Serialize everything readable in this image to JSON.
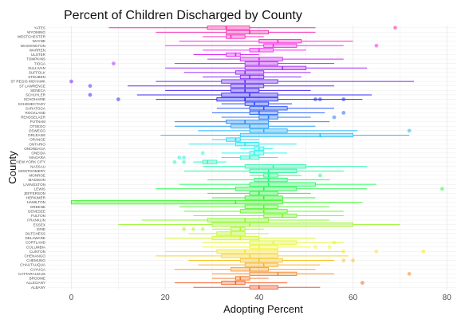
{
  "chart_data": {
    "type": "boxplot",
    "orientation": "horizontal",
    "title": "Percent of Children Discharged by County",
    "xlabel": "Adopting Percent",
    "ylabel": "County",
    "xlim": [
      -5,
      82
    ],
    "x_ticks": [
      0,
      20,
      40,
      60,
      80
    ],
    "grid": true,
    "legend": "none",
    "categories": [
      "YATES",
      "WYOMING",
      "WESTCHESTER",
      "WAYNE",
      "WASHINGTON",
      "WARREN",
      "ULSTER",
      "TOMPKINS",
      "TIOGA",
      "SULLIVAN",
      "SUFFOLK",
      "STEUBEN",
      "ST REGIS MOHAWK",
      "ST LAWRENCE",
      "SENECA",
      "SCHUYLER",
      "SCHOHARIE",
      "SCHENECTADY",
      "SARATOGA",
      "ROCKLAND",
      "RENSSELAER",
      "PUTNAM",
      "OTSEGO",
      "OSWEGO",
      "ORLEANS",
      "ORANGE",
      "ONTARIO",
      "ONONDAGA",
      "ONEIDA",
      "NIAGARA",
      "NEW YORK CITY",
      "NASSAU",
      "MONTGOMERY",
      "MONROE",
      "MADISON",
      "LIVINGSTON",
      "LEWIS",
      "JEFFERSON",
      "HERKIMER",
      "HAMILTON",
      "GREENE",
      "GENESEE",
      "FULTON",
      "FRANKLIN",
      "ESSEX",
      "ERIE",
      "DUTCHESS",
      "DELAWARE",
      "CORTLAND",
      "COLUMBIA",
      "CLINTON",
      "CHENANGO",
      "CHEMUNG",
      "CHAUTAUQUA",
      "CAYUGA",
      "CATTARAUGUS",
      "BROOME",
      "ALLEGANY",
      "ALBANY"
    ],
    "series": [
      {
        "category": "YATES",
        "min": 8,
        "q1": 29,
        "median": 33,
        "q3": 38,
        "max": 52,
        "outliers": [
          69
        ]
      },
      {
        "category": "WYOMING",
        "min": 18,
        "q1": 33,
        "median": 38,
        "q3": 42,
        "max": 52,
        "outliers": []
      },
      {
        "category": "WESTCHESTER",
        "min": 28,
        "q1": 33,
        "median": 34,
        "q3": 37,
        "max": 41,
        "outliers": []
      },
      {
        "category": "WAYNE",
        "min": 23,
        "q1": 40,
        "median": 44,
        "q3": 49,
        "max": 60,
        "outliers": []
      },
      {
        "category": "WASHINGTON",
        "min": 20,
        "q1": 41,
        "median": 43,
        "q3": 48,
        "max": 58,
        "outliers": [
          65
        ]
      },
      {
        "category": "WARREN",
        "min": 28,
        "q1": 38,
        "median": 40,
        "q3": 43,
        "max": 50,
        "outliers": []
      },
      {
        "category": "ULSTER",
        "min": 26,
        "q1": 33,
        "median": 35,
        "q3": 36,
        "max": 40,
        "outliers": []
      },
      {
        "category": "TOMPKINS",
        "min": 29,
        "q1": 36,
        "median": 40,
        "q3": 45,
        "max": 58,
        "outliers": []
      },
      {
        "category": "TIOGA",
        "min": 22,
        "q1": 37,
        "median": 40,
        "q3": 44,
        "max": 56,
        "outliers": [
          9
        ]
      },
      {
        "category": "SULLIVAN",
        "min": 20,
        "q1": 37,
        "median": 45,
        "q3": 50,
        "max": 63,
        "outliers": []
      },
      {
        "category": "SUFFOLK",
        "min": 24,
        "q1": 35,
        "median": 37,
        "q3": 41,
        "max": 51,
        "outliers": []
      },
      {
        "category": "STEUBEN",
        "min": 28,
        "q1": 36,
        "median": 38,
        "q3": 41,
        "max": 49,
        "outliers": []
      },
      {
        "category": "ST REGIS MOHAWK",
        "min": 18,
        "q1": 32,
        "median": 37,
        "q3": 44,
        "max": 73,
        "outliers": [
          0
        ]
      },
      {
        "category": "ST LAWRENCE",
        "min": 12,
        "q1": 34,
        "median": 37,
        "q3": 41,
        "max": 56,
        "outliers": [
          4
        ]
      },
      {
        "category": "SENECA",
        "min": 20,
        "q1": 34,
        "median": 37,
        "q3": 40,
        "max": 51,
        "outliers": []
      },
      {
        "category": "SCHUYLER",
        "min": 14,
        "q1": 32,
        "median": 38,
        "q3": 44,
        "max": 64,
        "outliers": [
          4
        ]
      },
      {
        "category": "SCHOHARIE",
        "min": 18,
        "q1": 31,
        "median": 37,
        "q3": 44,
        "max": 62,
        "outliers": [
          10,
          52,
          53,
          58
        ]
      },
      {
        "category": "SCHENECTADY",
        "min": 32,
        "q1": 37,
        "median": 39,
        "q3": 42,
        "max": 47,
        "outliers": []
      },
      {
        "category": "SARATOGA",
        "min": 31,
        "q1": 38,
        "median": 41,
        "q3": 46,
        "max": 56,
        "outliers": []
      },
      {
        "category": "ROCKLAND",
        "min": 30,
        "q1": 38,
        "median": 40,
        "q3": 44,
        "max": 54,
        "outliers": [
          58
        ]
      },
      {
        "category": "RENSSELAER",
        "min": 32,
        "q1": 40,
        "median": 42,
        "q3": 44,
        "max": 51,
        "outliers": [
          56
        ]
      },
      {
        "category": "PUTNAM",
        "min": 22,
        "q1": 33,
        "median": 37,
        "q3": 42,
        "max": 55,
        "outliers": []
      },
      {
        "category": "OTSEGO",
        "min": 22,
        "q1": 34,
        "median": 38,
        "q3": 42,
        "max": 52,
        "outliers": []
      },
      {
        "category": "OSWEGO",
        "min": 27,
        "q1": 38,
        "median": 41,
        "q3": 46,
        "max": 61,
        "outliers": [
          72
        ]
      },
      {
        "category": "ORLEANS",
        "min": 19,
        "q1": 36,
        "median": 53,
        "q3": 60,
        "max": 72,
        "outliers": []
      },
      {
        "category": "ORANGE",
        "min": 30,
        "q1": 33,
        "median": 35,
        "q3": 36,
        "max": 40,
        "outliers": []
      },
      {
        "category": "ONTARIO",
        "min": 25,
        "q1": 35,
        "median": 37,
        "q3": 40,
        "max": 48,
        "outliers": []
      },
      {
        "category": "ONONDAGA",
        "min": 36,
        "q1": 39,
        "median": 40,
        "q3": 41,
        "max": 43,
        "outliers": []
      },
      {
        "category": "ONEIDA",
        "min": 32,
        "q1": 38,
        "median": 39,
        "q3": 41,
        "max": 46,
        "outliers": [
          28
        ]
      },
      {
        "category": "NIAGARA",
        "min": 32,
        "q1": 36,
        "median": 38,
        "q3": 40,
        "max": 44,
        "outliers": [
          23,
          24
        ]
      },
      {
        "category": "NEW YORK CITY",
        "min": 26,
        "q1": 28,
        "median": 29,
        "q3": 31,
        "max": 33,
        "outliers": [
          22,
          24
        ]
      },
      {
        "category": "NASSAU",
        "min": 28,
        "q1": 37,
        "median": 43,
        "q3": 50,
        "max": 63,
        "outliers": []
      },
      {
        "category": "MONTGOMERY",
        "min": 24,
        "q1": 38,
        "median": 42,
        "q3": 48,
        "max": 58,
        "outliers": []
      },
      {
        "category": "MONROE",
        "min": 38,
        "q1": 41,
        "median": 42,
        "q3": 44,
        "max": 49,
        "outliers": [
          53
        ]
      },
      {
        "category": "MADISON",
        "min": 29,
        "q1": 39,
        "median": 42,
        "q3": 46,
        "max": 55,
        "outliers": []
      },
      {
        "category": "LIVINGSTON",
        "min": 23,
        "q1": 38,
        "median": 42,
        "q3": 52,
        "max": 65,
        "outliers": []
      },
      {
        "category": "LEWIS",
        "min": 18,
        "q1": 35,
        "median": 41,
        "q3": 48,
        "max": 63,
        "outliers": [
          79
        ]
      },
      {
        "category": "JEFFERSON",
        "min": 29,
        "q1": 38,
        "median": 40,
        "q3": 44,
        "max": 51,
        "outliers": []
      },
      {
        "category": "HERKIMER",
        "min": 30,
        "q1": 37,
        "median": 41,
        "q3": 45,
        "max": 52,
        "outliers": []
      },
      {
        "category": "HAMILTON",
        "min": 0,
        "q1": 0,
        "median": 35,
        "q3": 45,
        "max": 62,
        "outliers": []
      },
      {
        "category": "GREENE",
        "min": 23,
        "q1": 37,
        "median": 41,
        "q3": 44,
        "max": 55,
        "outliers": []
      },
      {
        "category": "GENESEE",
        "min": 24,
        "q1": 36,
        "median": 41,
        "q3": 46,
        "max": 58,
        "outliers": []
      },
      {
        "category": "FULTON",
        "min": 26,
        "q1": 41,
        "median": 45,
        "q3": 48,
        "max": 58,
        "outliers": []
      },
      {
        "category": "FRANKLIN",
        "min": 15,
        "q1": 29,
        "median": 37,
        "q3": 42,
        "max": 55,
        "outliers": []
      },
      {
        "category": "ESSEX",
        "min": 10,
        "q1": 30,
        "median": 38,
        "q3": 60,
        "max": 70,
        "outliers": []
      },
      {
        "category": "ERIE",
        "min": 30,
        "q1": 34,
        "median": 36,
        "q3": 37,
        "max": 41,
        "outliers": [
          24,
          26,
          28
        ]
      },
      {
        "category": "DUTCHESS",
        "min": 25,
        "q1": 31,
        "median": 34,
        "q3": 37,
        "max": 42,
        "outliers": []
      },
      {
        "category": "DELAWARE",
        "min": 20,
        "q1": 30,
        "median": 36,
        "q3": 40,
        "max": 52,
        "outliers": []
      },
      {
        "category": "CORTLAND",
        "min": 28,
        "q1": 38,
        "median": 43,
        "q3": 48,
        "max": 58,
        "outliers": [
          56
        ]
      },
      {
        "category": "COLUMBIA",
        "min": 28,
        "q1": 38,
        "median": 40,
        "q3": 44,
        "max": 51,
        "outliers": [
          52,
          55
        ]
      },
      {
        "category": "CLINTON",
        "min": 20,
        "q1": 31,
        "median": 37,
        "q3": 44,
        "max": 58,
        "outliers": [
          58,
          65,
          75
        ]
      },
      {
        "category": "CHENANGO",
        "min": 18,
        "q1": 32,
        "median": 38,
        "q3": 44,
        "max": 59,
        "outliers": []
      },
      {
        "category": "CHEMUNG",
        "min": 25,
        "q1": 36,
        "median": 40,
        "q3": 45,
        "max": 56,
        "outliers": [
          58,
          60
        ]
      },
      {
        "category": "CHAUTAUQUA",
        "min": 27,
        "q1": 37,
        "median": 41,
        "q3": 44,
        "max": 53,
        "outliers": []
      },
      {
        "category": "CAYUGA",
        "min": 22,
        "q1": 34,
        "median": 38,
        "q3": 42,
        "max": 52,
        "outliers": []
      },
      {
        "category": "CATTARAUGUS",
        "min": 30,
        "q1": 38,
        "median": 44,
        "q3": 48,
        "max": 56,
        "outliers": [
          72
        ]
      },
      {
        "category": "BROOME",
        "min": 30,
        "q1": 35,
        "median": 36,
        "q3": 38,
        "max": 42,
        "outliers": []
      },
      {
        "category": "ALLEGANY",
        "min": 22,
        "q1": 32,
        "median": 35,
        "q3": 37,
        "max": 46,
        "outliers": [
          62
        ]
      },
      {
        "category": "ALBANY",
        "min": 26,
        "q1": 38,
        "median": 40,
        "q3": 44,
        "max": 53,
        "outliers": []
      }
    ],
    "colors": {
      "first": "#FF61C3",
      "last": "#F8766D",
      "panel": "#FFFFFF",
      "grid": "#EBEBEB"
    }
  }
}
